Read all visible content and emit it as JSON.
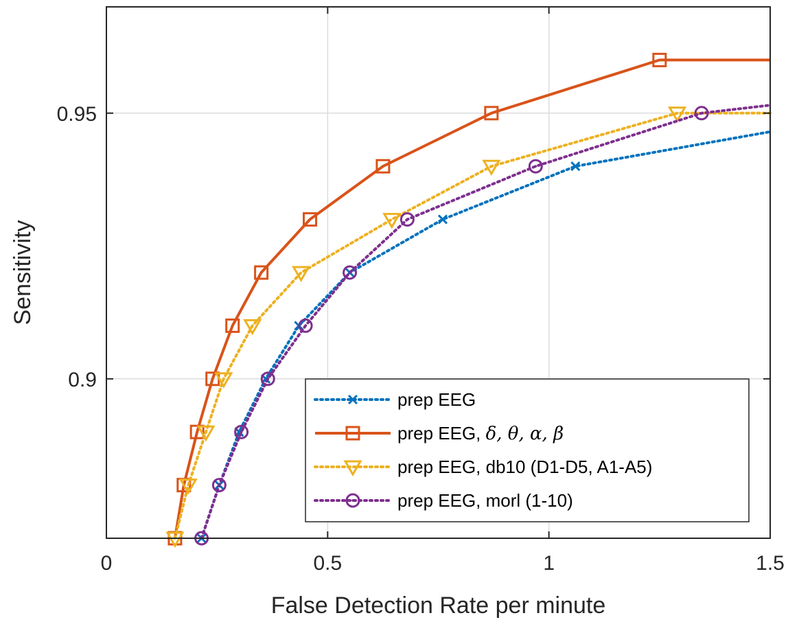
{
  "chart_data": {
    "type": "line",
    "title": "",
    "xlabel": "False Detection Rate per minute",
    "ylabel": "Sensitivity",
    "xlim": [
      0,
      1.5
    ],
    "ylim": [
      0.87,
      0.97
    ],
    "xticks": [
      0,
      0.5,
      1,
      1.5
    ],
    "xtick_labels": [
      "0",
      "0.5",
      "1",
      "1.5"
    ],
    "yticks": [
      0.9,
      0.95
    ],
    "ytick_labels": [
      "0.9",
      "0.95"
    ],
    "grid": true,
    "legend_position": "bottom-right",
    "series": [
      {
        "name": "prep EEG",
        "legend_text": "prep EEG",
        "color": "#0072BD",
        "line_style": "dotted",
        "marker": "x",
        "x": [
          0.215,
          0.255,
          0.3,
          0.36,
          0.435,
          0.55,
          0.76,
          1.06,
          1.5
        ],
        "y": [
          0.87,
          0.88,
          0.89,
          0.9,
          0.91,
          0.92,
          0.93,
          0.94,
          0.9465
        ]
      },
      {
        "name": "prep EEG, δ, θ, α, β",
        "legend_text": "prep EEG, ",
        "legend_greek": "δ, θ, α, β",
        "color": "#D95319",
        "line_style": "solid",
        "marker": "square",
        "x": [
          0.155,
          0.175,
          0.205,
          0.24,
          0.285,
          0.35,
          0.46,
          0.625,
          0.87,
          1.25,
          1.5
        ],
        "y": [
          0.87,
          0.88,
          0.89,
          0.9,
          0.91,
          0.92,
          0.93,
          0.94,
          0.95,
          0.96,
          0.96
        ]
      },
      {
        "name": "prep EEG, db10 (D1-D5, A1-A5)",
        "legend_text": "prep EEG, db10 (D1-D5, A1-A5)",
        "color": "#EDB120",
        "line_style": "dotted",
        "marker": "triangle-down",
        "x": [
          0.155,
          0.185,
          0.225,
          0.265,
          0.33,
          0.44,
          0.645,
          0.87,
          1.29,
          1.5
        ],
        "y": [
          0.87,
          0.88,
          0.89,
          0.9,
          0.91,
          0.92,
          0.93,
          0.94,
          0.95,
          0.95
        ]
      },
      {
        "name": "prep EEG, morl (1-10)",
        "legend_text": "prep EEG, morl (1-10)",
        "color": "#7E2F8E",
        "line_style": "dotted",
        "marker": "circle",
        "x": [
          0.215,
          0.255,
          0.305,
          0.365,
          0.45,
          0.55,
          0.68,
          0.97,
          1.345,
          1.5
        ],
        "y": [
          0.87,
          0.88,
          0.89,
          0.9,
          0.91,
          0.92,
          0.93,
          0.94,
          0.95,
          0.9515
        ]
      }
    ]
  }
}
